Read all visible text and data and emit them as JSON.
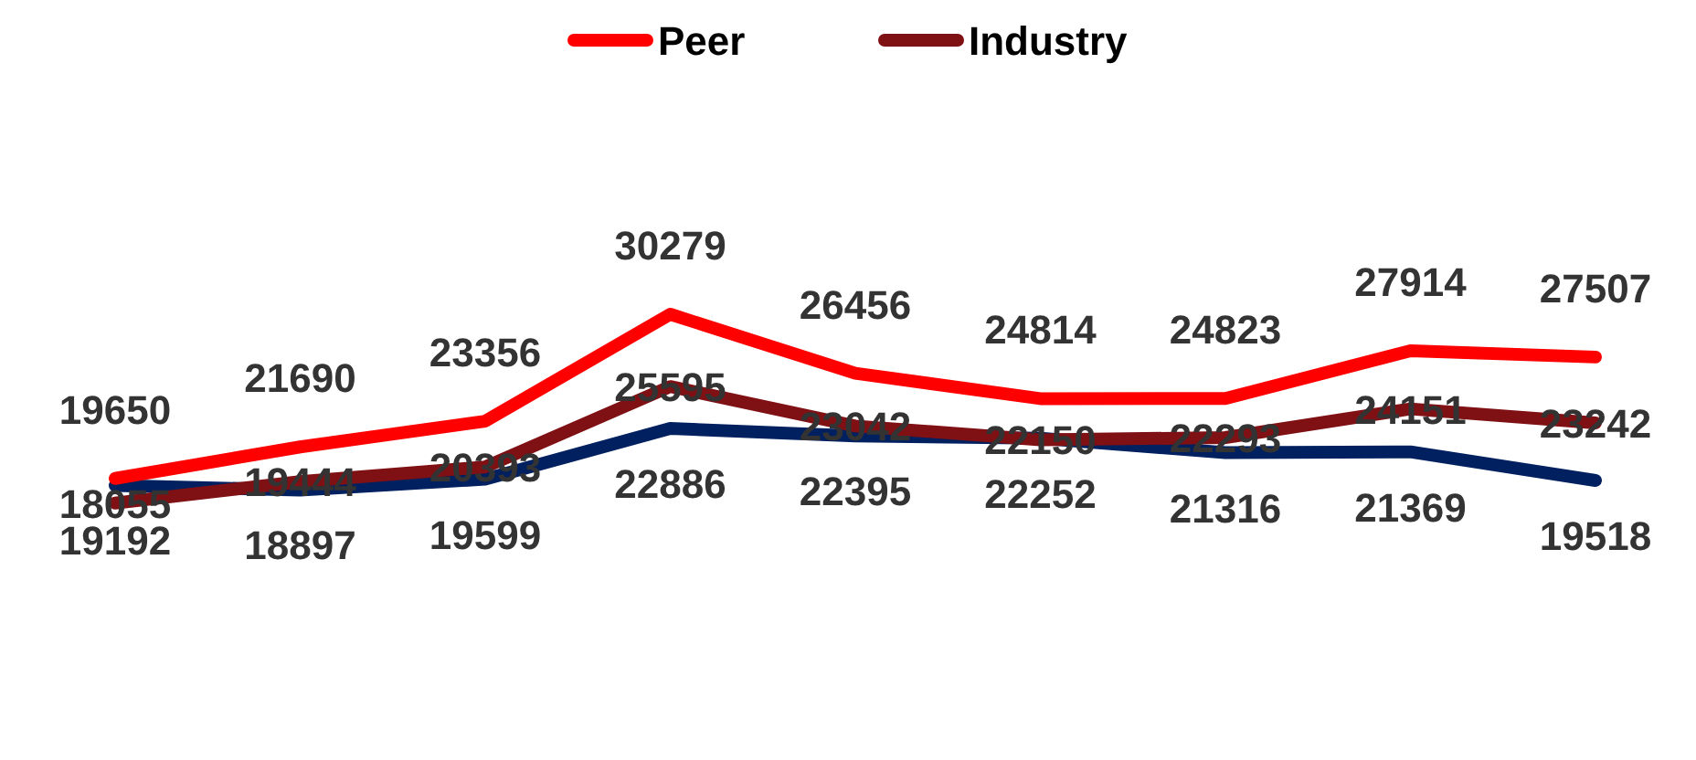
{
  "chart_data": {
    "type": "line",
    "categories": [
      null,
      null,
      null,
      null,
      null,
      null,
      null,
      null,
      null
    ],
    "data_labels": true,
    "legend": "top",
    "grid": false,
    "marker": "none",
    "line_style": "solid",
    "series": [
      {
        "color": "#002060",
        "values": [
          19192,
          18897,
          19599,
          22886,
          22395,
          22252,
          21316,
          21369,
          19518
        ]
      },
      {
        "name": "Peer",
        "color": "#ff0000",
        "values": [
          19650,
          21690,
          23356,
          30279,
          26456,
          24814,
          24823,
          27914,
          27507
        ]
      },
      {
        "name": "Industry",
        "color": "#7f1014",
        "values": [
          18055,
          19444,
          20393,
          25595,
          23042,
          22150,
          22293,
          24151,
          23242
        ]
      }
    ]
  }
}
